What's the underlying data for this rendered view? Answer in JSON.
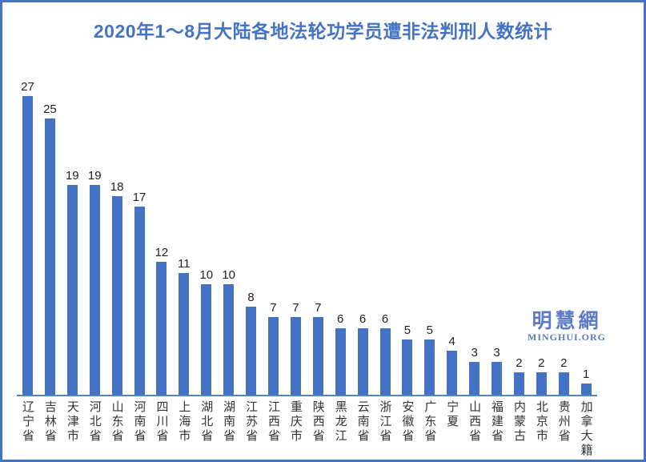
{
  "chart_data": {
    "type": "bar",
    "title": "2020年1～8月大陆各地法轮功学员遭非法判刑人数统计",
    "categories": [
      "辽宁省",
      "吉林省",
      "天津市",
      "河北省",
      "山东省",
      "河南省",
      "四川省",
      "上海市",
      "湖北省",
      "湖南省",
      "江苏省",
      "江西省",
      "重庆市",
      "陕西省",
      "黑龙江",
      "云南省",
      "浙江省",
      "安徽省",
      "广东省",
      "宁夏",
      "山西省",
      "福建省",
      "内蒙古",
      "北京市",
      "贵州省",
      "加拿大籍"
    ],
    "values": [
      27,
      25,
      19,
      19,
      18,
      17,
      12,
      11,
      10,
      10,
      8,
      7,
      7,
      7,
      6,
      6,
      6,
      5,
      5,
      4,
      3,
      3,
      2,
      2,
      2,
      1
    ],
    "xlabel": "",
    "ylabel": "",
    "ylim": [
      0,
      29
    ],
    "grid": false,
    "legend": false,
    "data_labels": true,
    "category_label_orientation": "vertical"
  },
  "watermark": {
    "cjk": "明慧網",
    "latin": "MINGHUI.ORG"
  },
  "colors": {
    "bar": "#4472C4",
    "title": "#4472C4",
    "border": "#4472C4",
    "axis_line": "#5085C8",
    "data_label": "#1f1f1f",
    "category_label": "#333333",
    "watermark": "#5C7BC4"
  }
}
